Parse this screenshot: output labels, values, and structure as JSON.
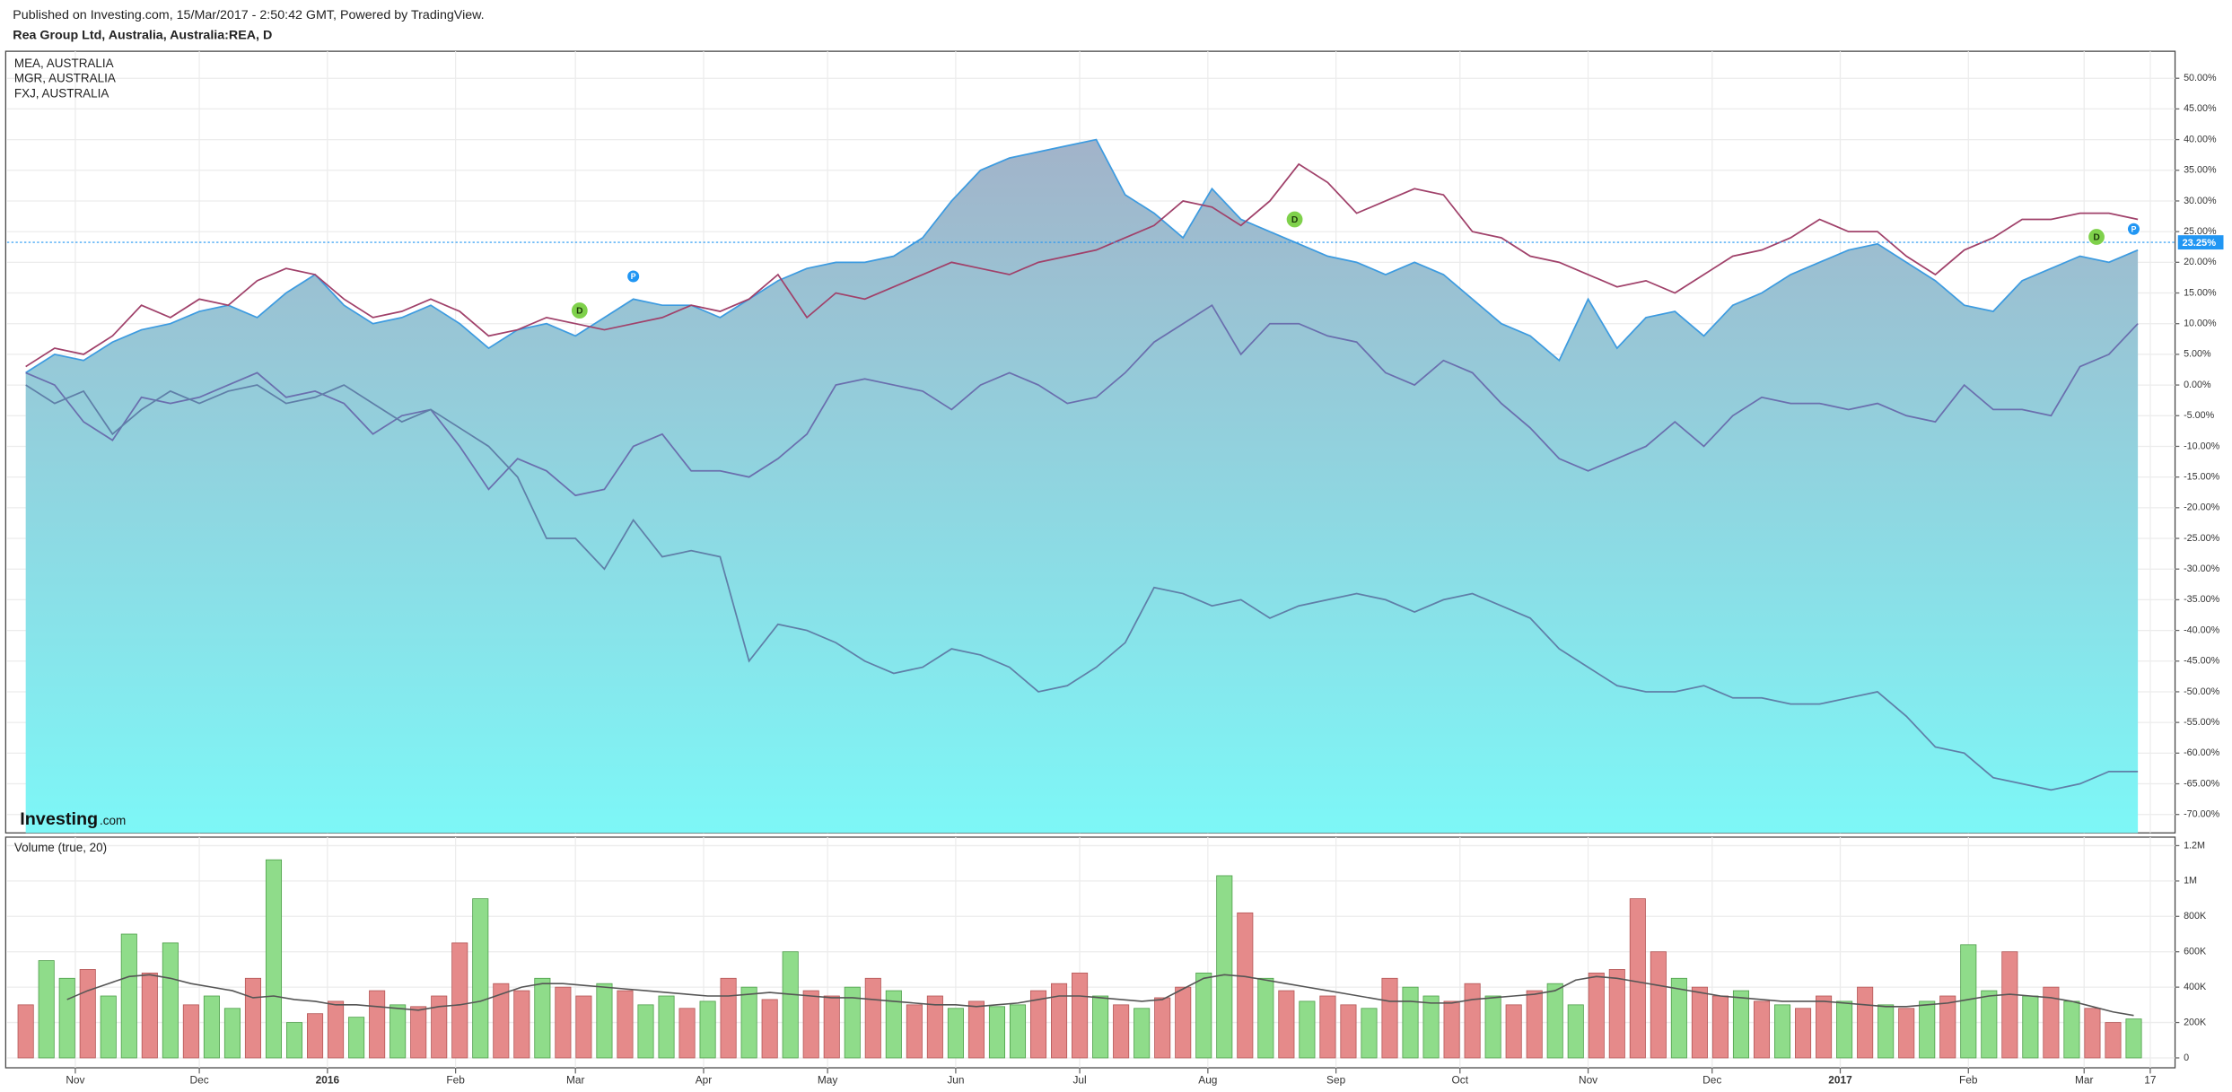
{
  "header": {
    "published": "Published on Investing.com, 15/Mar/2017 - 2:50:42 GMT, Powered by TradingView.",
    "watermark": [
      "Investing",
      ".com"
    ]
  },
  "chart_data": [
    {
      "type": "line",
      "title": "Rea Group Ltd, Australia, Australia:REA, D",
      "xlim": [
        -4.5,
        520
      ],
      "ylim": [
        -73,
        54.4
      ],
      "yticks": [
        {
          "value": 50,
          "label": "50.00%"
        },
        {
          "value": 45,
          "label": "45.00%"
        },
        {
          "value": 40,
          "label": "40.00%"
        },
        {
          "value": 35,
          "label": "35.00%"
        },
        {
          "value": 30,
          "label": "30.00%"
        },
        {
          "value": 25,
          "label": "25.00%"
        },
        {
          "value": 20,
          "label": "20.00%"
        },
        {
          "value": 15,
          "label": "15.00%"
        },
        {
          "value": 10,
          "label": "10.00%"
        },
        {
          "value": 5,
          "label": "5.00%"
        },
        {
          "value": 0,
          "label": "0.00%"
        },
        {
          "value": -5,
          "label": "-5.00%"
        },
        {
          "value": -10,
          "label": "-10.00%"
        },
        {
          "value": -15,
          "label": "-15.00%"
        },
        {
          "value": -20,
          "label": "-20.00%"
        },
        {
          "value": -25,
          "label": "-25.00%"
        },
        {
          "value": -30,
          "label": "-30.00%"
        },
        {
          "value": -35,
          "label": "-35.00%"
        },
        {
          "value": -40,
          "label": "-40.00%"
        },
        {
          "value": -45,
          "label": "-45.00%"
        },
        {
          "value": -50,
          "label": "-50.00%"
        },
        {
          "value": -55,
          "label": "-55.00%"
        },
        {
          "value": -60,
          "label": "-60.00%"
        },
        {
          "value": -65,
          "label": "-65.00%"
        },
        {
          "value": -70,
          "label": "-70.00%"
        }
      ],
      "grid": true,
      "x": [
        0,
        7,
        14,
        21,
        28,
        35,
        42,
        49,
        56,
        63,
        70,
        77,
        84,
        91,
        98,
        105,
        112,
        119,
        126,
        133,
        140,
        147,
        154,
        161,
        168,
        175,
        182,
        189,
        196,
        203,
        210,
        217,
        224,
        231,
        238,
        245,
        252,
        259,
        266,
        273,
        280,
        287,
        294,
        301,
        308,
        315,
        322,
        329,
        336,
        343,
        350,
        357,
        364,
        371,
        378,
        385,
        392,
        399,
        406,
        413,
        420,
        427,
        434,
        441,
        448,
        455,
        462,
        469,
        476,
        483,
        490,
        497,
        504,
        511
      ],
      "series": [
        {
          "color": "#3d9be0",
          "area": true,
          "values": [
            2,
            5,
            4,
            7,
            9,
            10,
            12,
            13,
            11,
            15,
            18,
            13,
            10,
            11,
            13,
            10,
            6,
            9,
            10,
            8,
            11,
            14,
            13,
            13,
            11,
            14,
            17,
            19,
            20,
            20,
            21,
            24,
            30,
            35,
            37,
            38,
            39,
            40,
            31,
            28,
            24,
            32,
            27,
            25,
            23,
            21,
            20,
            18,
            20,
            18,
            14,
            10,
            8,
            4,
            14,
            6,
            11,
            12,
            8,
            13,
            15,
            18,
            20,
            22,
            23,
            20,
            17,
            13,
            12,
            17,
            19,
            21,
            20,
            22
          ]
        },
        {
          "name": "MEA, AUSTRALIA",
          "color": "#a0416a",
          "values": [
            3,
            6,
            5,
            8,
            13,
            11,
            14,
            13,
            17,
            19,
            18,
            14,
            11,
            12,
            14,
            12,
            8,
            9,
            11,
            10,
            9,
            10,
            11,
            13,
            12,
            14,
            18,
            11,
            15,
            14,
            16,
            18,
            20,
            19,
            18,
            20,
            21,
            22,
            24,
            26,
            30,
            29,
            26,
            30,
            36,
            33,
            28,
            30,
            32,
            31,
            25,
            24,
            21,
            20,
            18,
            16,
            17,
            15,
            18,
            21,
            22,
            24,
            27,
            25,
            25,
            21,
            18,
            22,
            24,
            27,
            27,
            28,
            28,
            27
          ]
        },
        {
          "name": "MGR, AUSTRALIA",
          "color": "#6a6fae",
          "values": [
            2,
            0,
            -6,
            -9,
            -2,
            -3,
            -2,
            0,
            2,
            -2,
            -1,
            -3,
            -8,
            -5,
            -4,
            -10,
            -17,
            -12,
            -14,
            -18,
            -17,
            -10,
            -8,
            -14,
            -14,
            -15,
            -12,
            -8,
            0,
            1,
            0,
            -1,
            -4,
            0,
            2,
            0,
            -3,
            -2,
            2,
            7,
            10,
            13,
            5,
            10,
            10,
            8,
            7,
            2,
            0,
            4,
            2,
            -3,
            -7,
            -12,
            -14,
            -12,
            -10,
            -6,
            -10,
            -5,
            -2,
            -3,
            -3,
            -4,
            -3,
            -5,
            -6,
            0,
            -4,
            -4,
            -5,
            3,
            5,
            10
          ]
        },
        {
          "name": "FXJ, AUSTRALIA",
          "color": "#5f7fa8",
          "values": [
            0,
            -3,
            -1,
            -8,
            -4,
            -1,
            -3,
            -1,
            0,
            -3,
            -2,
            0,
            -3,
            -6,
            -4,
            -7,
            -10,
            -15,
            -25,
            -25,
            -30,
            -22,
            -28,
            -27,
            -28,
            -45,
            -39,
            -40,
            -42,
            -45,
            -47,
            -46,
            -43,
            -44,
            -46,
            -50,
            -49,
            -46,
            -42,
            -33,
            -34,
            -36,
            -35,
            -38,
            -36,
            -35,
            -34,
            -35,
            -37,
            -35,
            -34,
            -36,
            -38,
            -43,
            -46,
            -49,
            -50,
            -50,
            -49,
            -51,
            -51,
            -52,
            -52,
            -51,
            -50,
            -54,
            -59,
            -60,
            -64,
            -65,
            -66,
            -65,
            -63,
            -63
          ]
        }
      ],
      "price_line": {
        "value": 23.25,
        "label": "23.25%",
        "color": "#2196f3"
      },
      "events": [
        {
          "x": 134,
          "label": "D",
          "color": "#7fd14b"
        },
        {
          "x": 147,
          "label": "P",
          "color": "#2196f3"
        },
        {
          "x": 307,
          "label": "D",
          "color": "#7fd14b"
        },
        {
          "x": 501,
          "label": "D",
          "color": "#7fd14b"
        },
        {
          "x": 510,
          "label": "P",
          "color": "#2196f3"
        }
      ]
    },
    {
      "type": "bar",
      "title": "Volume (true, 20)",
      "xlim": [
        -4.5,
        520
      ],
      "ylim": [
        -56000,
        1248000
      ],
      "xticks": [
        {
          "value": 12,
          "label": "Nov"
        },
        {
          "value": 42,
          "label": "Dec"
        },
        {
          "value": 73,
          "label": "2016"
        },
        {
          "value": 104,
          "label": "Feb"
        },
        {
          "value": 133,
          "label": "Mar"
        },
        {
          "value": 164,
          "label": "Apr"
        },
        {
          "value": 194,
          "label": "May"
        },
        {
          "value": 225,
          "label": "Jun"
        },
        {
          "value": 255,
          "label": "Jul"
        },
        {
          "value": 286,
          "label": "Aug"
        },
        {
          "value": 317,
          "label": "Sep"
        },
        {
          "value": 347,
          "label": "Oct"
        },
        {
          "value": 378,
          "label": "Nov"
        },
        {
          "value": 408,
          "label": "Dec"
        },
        {
          "value": 439,
          "label": "2017"
        },
        {
          "value": 470,
          "label": "Feb"
        },
        {
          "value": 498,
          "label": "Mar"
        },
        {
          "value": 514,
          "label": "17"
        }
      ],
      "yticks": [
        {
          "value": 1200000,
          "label": "1.2M"
        },
        {
          "value": 1000000,
          "label": "1M"
        },
        {
          "value": 800000,
          "label": "800K"
        },
        {
          "value": 600000,
          "label": "600K"
        },
        {
          "value": 400000,
          "label": "400K"
        },
        {
          "value": 200000,
          "label": "200K"
        },
        0
      ],
      "grid": true,
      "x": [
        0,
        5,
        10,
        15,
        20,
        25,
        30,
        35,
        40,
        45,
        50,
        55,
        60,
        65,
        70,
        75,
        80,
        85,
        90,
        95,
        100,
        105,
        110,
        115,
        120,
        125,
        130,
        135,
        140,
        145,
        150,
        155,
        160,
        165,
        170,
        175,
        180,
        185,
        190,
        195,
        200,
        205,
        210,
        215,
        220,
        225,
        230,
        235,
        240,
        245,
        250,
        255,
        260,
        265,
        270,
        275,
        280,
        285,
        290,
        295,
        300,
        305,
        310,
        315,
        320,
        325,
        330,
        335,
        340,
        345,
        350,
        355,
        360,
        365,
        370,
        375,
        380,
        385,
        390,
        395,
        400,
        405,
        410,
        415,
        420,
        425,
        430,
        435,
        440,
        445,
        450,
        455,
        460,
        465,
        470,
        475,
        480,
        485,
        490,
        495,
        500,
        505,
        510
      ],
      "values": [
        300000,
        550000,
        450000,
        500000,
        350000,
        700000,
        480000,
        650000,
        300000,
        350000,
        280000,
        450000,
        1120000,
        200000,
        250000,
        320000,
        230000,
        380000,
        300000,
        290000,
        350000,
        650000,
        900000,
        420000,
        380000,
        450000,
        400000,
        350000,
        420000,
        380000,
        300000,
        350000,
        280000,
        320000,
        450000,
        400000,
        330000,
        600000,
        380000,
        350000,
        400000,
        450000,
        380000,
        300000,
        350000,
        280000,
        320000,
        290000,
        300000,
        380000,
        420000,
        480000,
        350000,
        300000,
        280000,
        340000,
        400000,
        480000,
        1030000,
        820000,
        450000,
        380000,
        320000,
        350000,
        300000,
        280000,
        450000,
        400000,
        350000,
        320000,
        420000,
        350000,
        300000,
        380000,
        420000,
        300000,
        480000,
        500000,
        900000,
        600000,
        450000,
        400000,
        350000,
        380000,
        320000,
        300000,
        280000,
        350000,
        320000,
        400000,
        300000,
        280000,
        320000,
        350000,
        640000,
        380000,
        600000,
        350000,
        400000,
        320000,
        280000,
        200000,
        220000
      ],
      "bar_colors": [
        "#e58a8a",
        "#8fdc8a",
        "#8fdc8a",
        "#e58a8a",
        "#8fdc8a",
        "#8fdc8a",
        "#e58a8a",
        "#8fdc8a",
        "#e58a8a",
        "#8fdc8a",
        "#8fdc8a",
        "#e58a8a",
        "#8fdc8a",
        "#8fdc8a",
        "#e58a8a",
        "#e58a8a",
        "#8fdc8a",
        "#e58a8a",
        "#8fdc8a",
        "#e58a8a",
        "#e58a8a",
        "#e58a8a",
        "#8fdc8a",
        "#e58a8a",
        "#e58a8a",
        "#8fdc8a",
        "#e58a8a",
        "#e58a8a",
        "#8fdc8a",
        "#e58a8a",
        "#8fdc8a",
        "#8fdc8a",
        "#e58a8a",
        "#8fdc8a",
        "#e58a8a",
        "#8fdc8a",
        "#e58a8a",
        "#8fdc8a",
        "#e58a8a",
        "#e58a8a",
        "#8fdc8a",
        "#e58a8a",
        "#8fdc8a",
        "#e58a8a",
        "#e58a8a",
        "#8fdc8a",
        "#e58a8a",
        "#8fdc8a",
        "#8fdc8a",
        "#e58a8a",
        "#e58a8a",
        "#e58a8a",
        "#8fdc8a",
        "#e58a8a",
        "#8fdc8a",
        "#e58a8a",
        "#e58a8a",
        "#8fdc8a",
        "#8fdc8a",
        "#e58a8a",
        "#8fdc8a",
        "#e58a8a",
        "#8fdc8a",
        "#e58a8a",
        "#e58a8a",
        "#8fdc8a",
        "#e58a8a",
        "#8fdc8a",
        "#8fdc8a",
        "#e58a8a",
        "#e58a8a",
        "#8fdc8a",
        "#e58a8a",
        "#e58a8a",
        "#8fdc8a",
        "#8fdc8a",
        "#e58a8a",
        "#e58a8a",
        "#e58a8a",
        "#e58a8a",
        "#8fdc8a",
        "#e58a8a",
        "#e58a8a",
        "#8fdc8a",
        "#e58a8a",
        "#8fdc8a",
        "#e58a8a",
        "#e58a8a",
        "#8fdc8a",
        "#e58a8a",
        "#8fdc8a",
        "#e58a8a",
        "#8fdc8a",
        "#e58a8a",
        "#8fdc8a",
        "#8fdc8a",
        "#e58a8a",
        "#8fdc8a",
        "#e58a8a",
        "#8fdc8a",
        "#e58a8a",
        "#e58a8a",
        "#8fdc8a"
      ],
      "ma": {
        "color": "#555555",
        "values": [
          null,
          null,
          330000,
          380000,
          420000,
          460000,
          470000,
          450000,
          420000,
          400000,
          380000,
          340000,
          350000,
          330000,
          320000,
          300000,
          300000,
          290000,
          280000,
          270000,
          290000,
          300000,
          320000,
          360000,
          400000,
          420000,
          420000,
          410000,
          400000,
          390000,
          380000,
          370000,
          360000,
          350000,
          350000,
          360000,
          370000,
          360000,
          350000,
          340000,
          340000,
          330000,
          320000,
          310000,
          300000,
          300000,
          290000,
          300000,
          310000,
          330000,
          350000,
          350000,
          340000,
          330000,
          320000,
          330000,
          390000,
          450000,
          470000,
          460000,
          440000,
          420000,
          400000,
          380000,
          360000,
          340000,
          320000,
          320000,
          310000,
          310000,
          330000,
          340000,
          350000,
          360000,
          380000,
          440000,
          460000,
          450000,
          430000,
          410000,
          390000,
          370000,
          350000,
          340000,
          330000,
          320000,
          320000,
          320000,
          310000,
          300000,
          290000,
          290000,
          300000,
          310000,
          330000,
          350000,
          360000,
          350000,
          340000,
          320000,
          290000,
          260000,
          240000
        ]
      }
    }
  ]
}
